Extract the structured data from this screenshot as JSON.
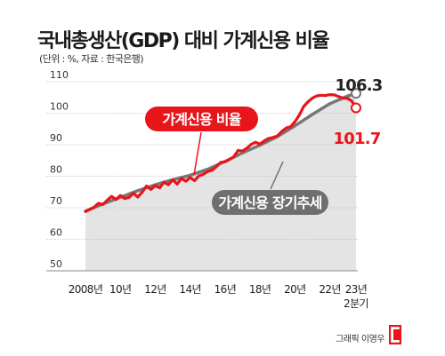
{
  "title": "국내총생산(GDP) 대비 가계신용 비율",
  "subtitle": "(단위 : %, 자료 : 한국은행)",
  "credit": "그래픽 이영우",
  "colors": {
    "ratio_line": "#e8151b",
    "trend_line": "#777777",
    "trend_fill": "#e4e4e4",
    "grid": "#bdbdbd",
    "label_bg_trend": "#6f6f6f",
    "logo": "#e8151b"
  },
  "chart_data": {
    "type": "line",
    "xlim": [
      2008,
      2023.5
    ],
    "ylim": [
      50,
      110
    ],
    "yticks": [
      50,
      60,
      70,
      80,
      90,
      100,
      110
    ],
    "xticks": [
      {
        "x": 2008,
        "label": "2008년"
      },
      {
        "x": 2010,
        "label": "10년"
      },
      {
        "x": 2012,
        "label": "12년"
      },
      {
        "x": 2014,
        "label": "14년"
      },
      {
        "x": 2016,
        "label": "16년"
      },
      {
        "x": 2018,
        "label": "18년"
      },
      {
        "x": 2020,
        "label": "20년"
      },
      {
        "x": 2022,
        "label": "22년"
      },
      {
        "x": 2023.5,
        "label": "23년",
        "label2": "2분기"
      }
    ],
    "grid": true,
    "series": [
      {
        "name": "가계신용 비율",
        "style": "line",
        "end_label": "101.7",
        "points": [
          [
            2008.0,
            68.8
          ],
          [
            2008.25,
            69.5
          ],
          [
            2008.5,
            70.2
          ],
          [
            2008.75,
            71.4
          ],
          [
            2009.0,
            71.0
          ],
          [
            2009.25,
            72.4
          ],
          [
            2009.5,
            73.6
          ],
          [
            2009.75,
            72.6
          ],
          [
            2010.0,
            73.9
          ],
          [
            2010.25,
            72.9
          ],
          [
            2010.5,
            73.3
          ],
          [
            2010.75,
            74.6
          ],
          [
            2011.0,
            73.4
          ],
          [
            2011.25,
            74.9
          ],
          [
            2011.5,
            76.9
          ],
          [
            2011.75,
            75.8
          ],
          [
            2012.0,
            77.0
          ],
          [
            2012.25,
            76.3
          ],
          [
            2012.5,
            78.1
          ],
          [
            2012.75,
            77.3
          ],
          [
            2013.0,
            78.9
          ],
          [
            2013.25,
            77.5
          ],
          [
            2013.5,
            79.3
          ],
          [
            2013.75,
            78.4
          ],
          [
            2014.0,
            79.6
          ],
          [
            2014.25,
            78.6
          ],
          [
            2014.5,
            80.1
          ],
          [
            2014.75,
            80.6
          ],
          [
            2015.0,
            81.5
          ],
          [
            2015.25,
            81.9
          ],
          [
            2015.5,
            83.0
          ],
          [
            2015.75,
            84.4
          ],
          [
            2016.0,
            84.6
          ],
          [
            2016.25,
            85.3
          ],
          [
            2016.5,
            86.2
          ],
          [
            2016.75,
            88.2
          ],
          [
            2017.0,
            88.0
          ],
          [
            2017.25,
            88.9
          ],
          [
            2017.5,
            90.1
          ],
          [
            2017.75,
            90.8
          ],
          [
            2018.0,
            90.2
          ],
          [
            2018.25,
            91.2
          ],
          [
            2018.5,
            92.0
          ],
          [
            2018.75,
            92.3
          ],
          [
            2019.0,
            92.8
          ],
          [
            2019.25,
            94.2
          ],
          [
            2019.5,
            95.3
          ],
          [
            2019.75,
            95.7
          ],
          [
            2020.0,
            97.3
          ],
          [
            2020.25,
            99.4
          ],
          [
            2020.5,
            102.1
          ],
          [
            2020.75,
            103.6
          ],
          [
            2021.0,
            104.8
          ],
          [
            2021.25,
            105.5
          ],
          [
            2021.5,
            105.7
          ],
          [
            2021.75,
            105.6
          ],
          [
            2022.0,
            105.9
          ],
          [
            2022.25,
            105.8
          ],
          [
            2022.5,
            105.3
          ],
          [
            2022.75,
            104.8
          ],
          [
            2023.0,
            104.7
          ],
          [
            2023.25,
            103.9
          ],
          [
            2023.5,
            101.7
          ]
        ]
      },
      {
        "name": "가계신용 장기추세",
        "style": "area",
        "end_label": "106.3",
        "points": [
          [
            2008.0,
            68.9
          ],
          [
            2009.0,
            71.2
          ],
          [
            2010.0,
            73.3
          ],
          [
            2011.0,
            75.4
          ],
          [
            2012.0,
            77.3
          ],
          [
            2013.0,
            78.9
          ],
          [
            2014.0,
            80.3
          ],
          [
            2015.0,
            82.2
          ],
          [
            2016.0,
            84.7
          ],
          [
            2017.0,
            87.4
          ],
          [
            2018.0,
            89.9
          ],
          [
            2019.0,
            92.6
          ],
          [
            2020.0,
            96.0
          ],
          [
            2021.0,
            99.6
          ],
          [
            2022.0,
            103.0
          ],
          [
            2023.0,
            105.4
          ],
          [
            2023.5,
            106.3
          ]
        ]
      }
    ]
  }
}
